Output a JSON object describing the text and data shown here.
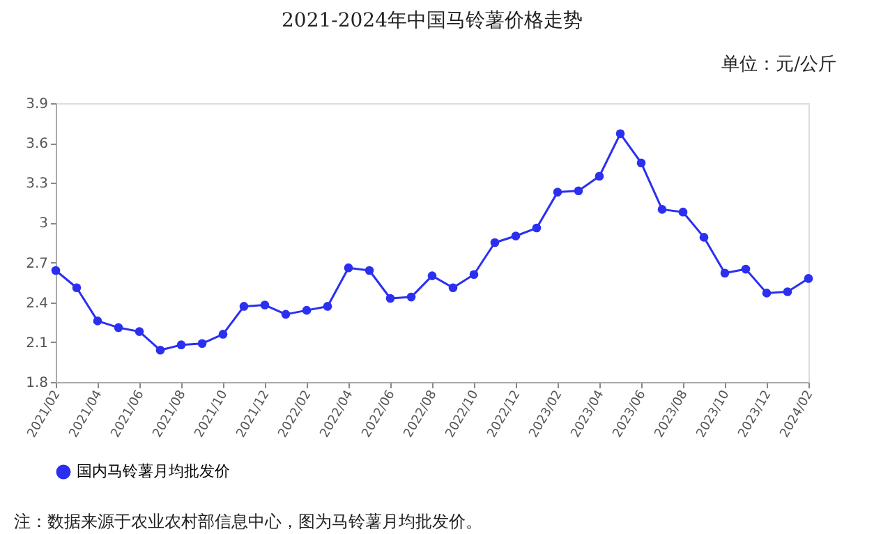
{
  "chart_data": {
    "type": "line",
    "title": "2021-2024年中国马铃薯价格走势",
    "categories": [
      "2021/02",
      null,
      "2021/04",
      null,
      "2021/06",
      null,
      "2021/08",
      null,
      "2021/10",
      null,
      "2021/12",
      null,
      "2022/02",
      null,
      "2022/04",
      null,
      "2022/06",
      null,
      "2022/08",
      null,
      "2022/10",
      null,
      "2022/12",
      null,
      "2023/02",
      null,
      "2023/04",
      null,
      "2023/06",
      null,
      "2023/08",
      null,
      "2023/10",
      null,
      "2023/12",
      null,
      "2024/02"
    ],
    "series": [
      {
        "name": "国内马铃薯月均批发价",
        "color": "#2b2ff0",
        "values": [
          2.64,
          2.51,
          2.26,
          2.21,
          2.18,
          2.04,
          2.08,
          2.09,
          2.16,
          2.37,
          2.38,
          2.31,
          2.34,
          2.37,
          2.66,
          2.64,
          2.43,
          2.44,
          2.6,
          2.51,
          2.61,
          2.85,
          2.9,
          2.96,
          3.23,
          3.24,
          3.35,
          3.67,
          3.45,
          3.1,
          3.08,
          2.89,
          2.62,
          2.65,
          2.47,
          2.48,
          2.58
        ]
      }
    ],
    "ylim": [
      1.8,
      3.9
    ],
    "yticks": [
      1.8,
      2.1,
      2.4,
      2.7,
      {
        "value": 3,
        "label": "3"
      },
      3.3,
      3.6,
      3.9
    ],
    "grid": false,
    "legend": "bottom",
    "marker": "circle",
    "line_style": "solid",
    "annotations": [
      "单位：元/公斤",
      "注：数据来源于农业农村部信息中心，图为马铃薯月均批发价。"
    ]
  }
}
